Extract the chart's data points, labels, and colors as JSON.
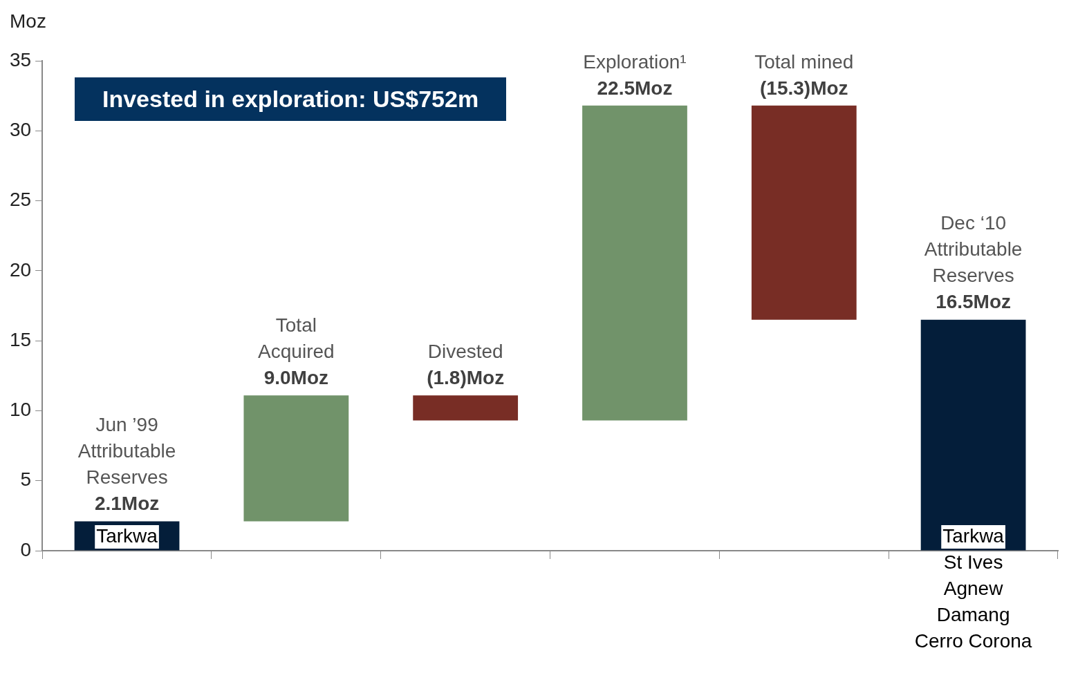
{
  "chart_data": {
    "type": "bar",
    "title": "Invested in exploration:  US$752m",
    "ylabel": "Moz",
    "categories": [
      "Jun ’99 Attributable Reserves",
      "Total Acquired",
      "Divested",
      "Exploration¹",
      "Total mined",
      "Dec ‘10 Attributable Reserves"
    ],
    "values": [
      2.1,
      9.0,
      -1.8,
      22.5,
      -15.3,
      16.5
    ],
    "base": [
      0,
      2.1,
      11.1,
      9.3,
      31.8,
      0
    ],
    "colors": [
      "#041e3a",
      "#71936a",
      "#782d25",
      "#71936a",
      "#782d25",
      "#041e3a"
    ],
    "value_labels": [
      "2.1Moz",
      "9.0Moz",
      "(1.8)Moz",
      "22.5Moz",
      "(15.3)Moz",
      "16.5Moz"
    ],
    "ylim": [
      0,
      35
    ],
    "yticks": [
      0,
      5,
      10,
      15,
      20,
      25,
      30,
      35
    ],
    "annotations": [
      {
        "text": "Tarkwa",
        "x": "Jun ’99 Attributable Reserves",
        "y": 0
      },
      {
        "text": "Tarkwa\nSt Ives\nAgnew\nDamang\nCerro Corona",
        "x": "Dec ‘10 Attributable Reserves",
        "y": 0
      }
    ],
    "grid": false,
    "legend": false
  }
}
